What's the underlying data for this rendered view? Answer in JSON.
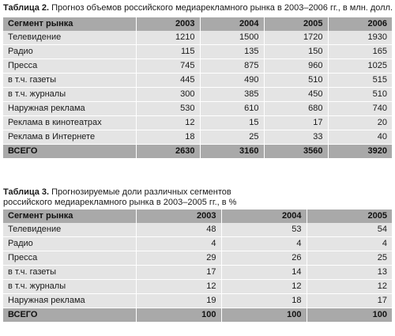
{
  "table1": {
    "caption_label": "Таблица 2.",
    "caption_text": " Прогноз объемов российского медиарекламного рынка в 2003–2006 гг., в млн. долл.",
    "headers": [
      "Сегмент рынка",
      "2003",
      "2004",
      "2005",
      "2006"
    ],
    "rows": [
      [
        "Телевидение",
        "1210",
        "1500",
        "1720",
        "1930"
      ],
      [
        "Радио",
        "115",
        "135",
        "150",
        "165"
      ],
      [
        "Пресса",
        "745",
        "875",
        "960",
        "1025"
      ],
      [
        "в т.ч. газеты",
        "445",
        "490",
        "510",
        "515"
      ],
      [
        "в т.ч. журналы",
        "300",
        "385",
        "450",
        "510"
      ],
      [
        "Наружная реклама",
        "530",
        "610",
        "680",
        "740"
      ],
      [
        "Реклама в кинотеатрах",
        "12",
        "15",
        "17",
        "20"
      ],
      [
        "Реклама в Интернете",
        "18",
        "25",
        "33",
        "40"
      ]
    ],
    "total": [
      "ВСЕГО",
      "2630",
      "3160",
      "3560",
      "3920"
    ]
  },
  "table2": {
    "caption_label": "Таблица 3.",
    "caption_text": " Прогнозируемые доли различных сегментов российского медиарекламного рынка в 2003–2005 гг., в %",
    "headers": [
      "Сегмент рынка",
      "2003",
      "2004",
      "2005"
    ],
    "rows": [
      [
        "Телевидение",
        "48",
        "53",
        "54"
      ],
      [
        "Радио",
        "4",
        "4",
        "4"
      ],
      [
        "Пресса",
        "29",
        "26",
        "25"
      ],
      [
        "в т.ч. газеты",
        "17",
        "14",
        "13"
      ],
      [
        "в т.ч. журналы",
        "12",
        "12",
        "12"
      ],
      [
        "Наружная реклама",
        "19",
        "18",
        "17"
      ]
    ],
    "total": [
      "ВСЕГО",
      "100",
      "100",
      "100"
    ]
  }
}
